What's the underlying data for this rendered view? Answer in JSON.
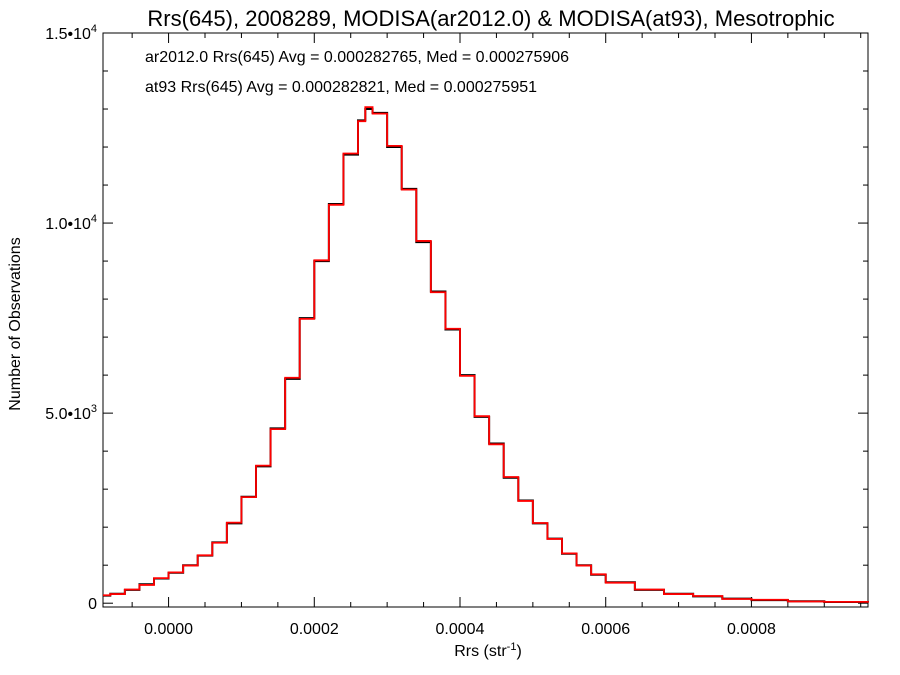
{
  "chart_data": {
    "type": "line",
    "title": "Rrs(645), 2008289, MODISA(ar2012.0) & MODISA(at93), Mesotrophic",
    "xlabel_base": "Rrs (str",
    "xlabel_sup": "-1",
    "xlabel_close": ")",
    "ylabel": "Number of Observations",
    "xlim": [
      -9e-05,
      0.00096
    ],
    "ylim": [
      -100,
      15000
    ],
    "x_ticks": [
      {
        "value": 0.0,
        "label": "0.0000"
      },
      {
        "value": 0.0002,
        "label": "0.0002"
      },
      {
        "value": 0.0004,
        "label": "0.0004"
      },
      {
        "value": 0.0006,
        "label": "0.0006"
      },
      {
        "value": 0.0008,
        "label": "0.0008"
      }
    ],
    "y_ticks": [
      {
        "value": 0,
        "base": "0",
        "sup": ""
      },
      {
        "value": 5000,
        "base": "5.0•10",
        "sup": "3"
      },
      {
        "value": 10000,
        "base": "1.0•10",
        "sup": "4"
      },
      {
        "value": 15000,
        "base": "1.5•10",
        "sup": "4"
      }
    ],
    "step": "histogram",
    "series": [
      {
        "name": "ar2012.0",
        "color": "#000000",
        "stats_label": "ar2012.0 Rrs(645) Avg = 0.000282765, Med = 0.000275906",
        "x": [
          -9e-05,
          -8e-05,
          -6e-05,
          -4e-05,
          -2e-05,
          0.0,
          2e-05,
          4e-05,
          6e-05,
          8e-05,
          0.0001,
          0.00012,
          0.00014,
          0.00016,
          0.00018,
          0.0002,
          0.00022,
          0.00024,
          0.00026,
          0.00027,
          0.00028,
          0.0003,
          0.00032,
          0.00034,
          0.00036,
          0.00038,
          0.0004,
          0.00042,
          0.00044,
          0.00046,
          0.00048,
          0.0005,
          0.00052,
          0.00054,
          0.00056,
          0.00058,
          0.0006,
          0.00064,
          0.00068,
          0.00072,
          0.00076,
          0.0008,
          0.00085,
          0.0009,
          0.00096
        ],
        "y": [
          200,
          250,
          350,
          500,
          650,
          800,
          1000,
          1250,
          1600,
          2100,
          2800,
          3600,
          4600,
          5900,
          7500,
          9000,
          10500,
          11800,
          12700,
          13000,
          12900,
          12000,
          10900,
          9500,
          8200,
          7200,
          6000,
          4900,
          4200,
          3300,
          2700,
          2100,
          1700,
          1300,
          1000,
          750,
          550,
          350,
          250,
          180,
          120,
          80,
          50,
          30,
          20
        ]
      },
      {
        "name": "at93",
        "color": "#ff0000",
        "stats_label": "at93 Rrs(645) Avg = 0.000282821, Med = 0.000275951",
        "x": [
          -9e-05,
          -8e-05,
          -6e-05,
          -4e-05,
          -2e-05,
          0.0,
          2e-05,
          4e-05,
          6e-05,
          8e-05,
          0.0001,
          0.00012,
          0.00014,
          0.00016,
          0.00018,
          0.0002,
          0.00022,
          0.00024,
          0.00026,
          0.00027,
          0.00028,
          0.0003,
          0.00032,
          0.00034,
          0.00036,
          0.00038,
          0.0004,
          0.00042,
          0.00044,
          0.00046,
          0.00048,
          0.0005,
          0.00052,
          0.00054,
          0.00056,
          0.00058,
          0.0006,
          0.00064,
          0.00068,
          0.00072,
          0.00076,
          0.0008,
          0.00085,
          0.0009,
          0.00096
        ],
        "y": [
          210,
          240,
          360,
          480,
          660,
          810,
          990,
          1260,
          1590,
          2120,
          2790,
          3620,
          4580,
          5930,
          7480,
          9020,
          10480,
          11830,
          12680,
          13050,
          12880,
          12030,
          10880,
          9530,
          8180,
          7220,
          5980,
          4920,
          4180,
          3320,
          2690,
          2110,
          1690,
          1310,
          990,
          760,
          540,
          360,
          240,
          190,
          110,
          90,
          45,
          35,
          15
        ]
      }
    ]
  }
}
